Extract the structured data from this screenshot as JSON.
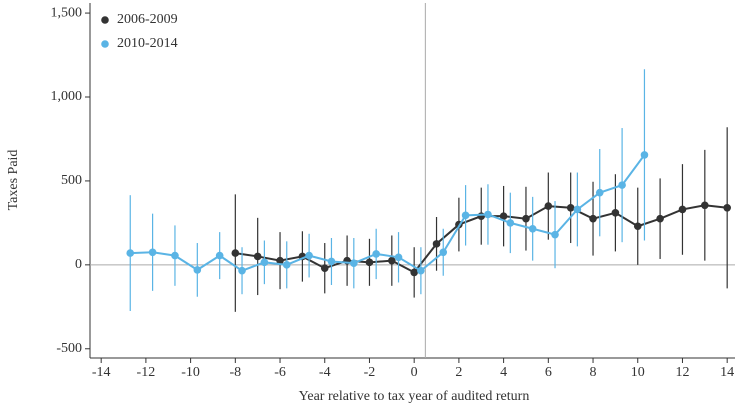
{
  "chart_data": {
    "type": "line",
    "xlabel": "Year relative to tax year of audited return",
    "ylabel": "Taxes Paid",
    "xlim": [
      -14.5,
      14.35
    ],
    "ylim": [
      -555,
      1560
    ],
    "xticks": [
      -14,
      -12,
      -10,
      -8,
      -6,
      -4,
      -2,
      0,
      2,
      4,
      6,
      8,
      10,
      12,
      14
    ],
    "yticks": [
      -500,
      0,
      500,
      {
        "value": 1000,
        "label": "1,000"
      },
      {
        "value": 1500,
        "label": "1,500"
      }
    ],
    "vline": 0.5,
    "hline": 0,
    "legend": "upper-left",
    "series": [
      {
        "name": "2006-2009",
        "color": "#333333",
        "x": [
          -8,
          -7,
          -6,
          -5,
          -4,
          -3,
          -2,
          -1,
          0,
          1,
          2,
          3,
          4,
          5,
          6,
          7,
          8,
          9,
          10,
          11,
          12,
          13,
          14
        ],
        "values": [
          70,
          50,
          25,
          50,
          -20,
          25,
          15,
          25,
          -45,
          125,
          240,
          290,
          290,
          275,
          350,
          340,
          275,
          310,
          230,
          275,
          330,
          355,
          340
        ],
        "errors": [
          350,
          230,
          170,
          150,
          150,
          150,
          140,
          150,
          150,
          160,
          160,
          170,
          180,
          190,
          200,
          210,
          220,
          230,
          230,
          240,
          270,
          330,
          480
        ]
      },
      {
        "name": "2010-2014",
        "color": "#5ab4e5",
        "x": [
          -12.7,
          -11.7,
          -10.7,
          -9.7,
          -8.7,
          -7.7,
          -6.7,
          -5.7,
          -4.7,
          -3.7,
          -2.7,
          -1.7,
          -0.7,
          0.3,
          1.3,
          2.3,
          3.3,
          4.3,
          5.3,
          6.3,
          7.3,
          8.3,
          9.3,
          10.3
        ],
        "values": [
          70,
          75,
          55,
          -30,
          55,
          -35,
          15,
          0,
          55,
          20,
          10,
          65,
          45,
          -35,
          75,
          295,
          300,
          250,
          215,
          180,
          330,
          430,
          475,
          655
        ],
        "errors": [
          345,
          230,
          180,
          160,
          140,
          140,
          130,
          140,
          130,
          140,
          150,
          150,
          150,
          140,
          140,
          180,
          180,
          180,
          190,
          200,
          220,
          260,
          340,
          510
        ]
      }
    ]
  }
}
